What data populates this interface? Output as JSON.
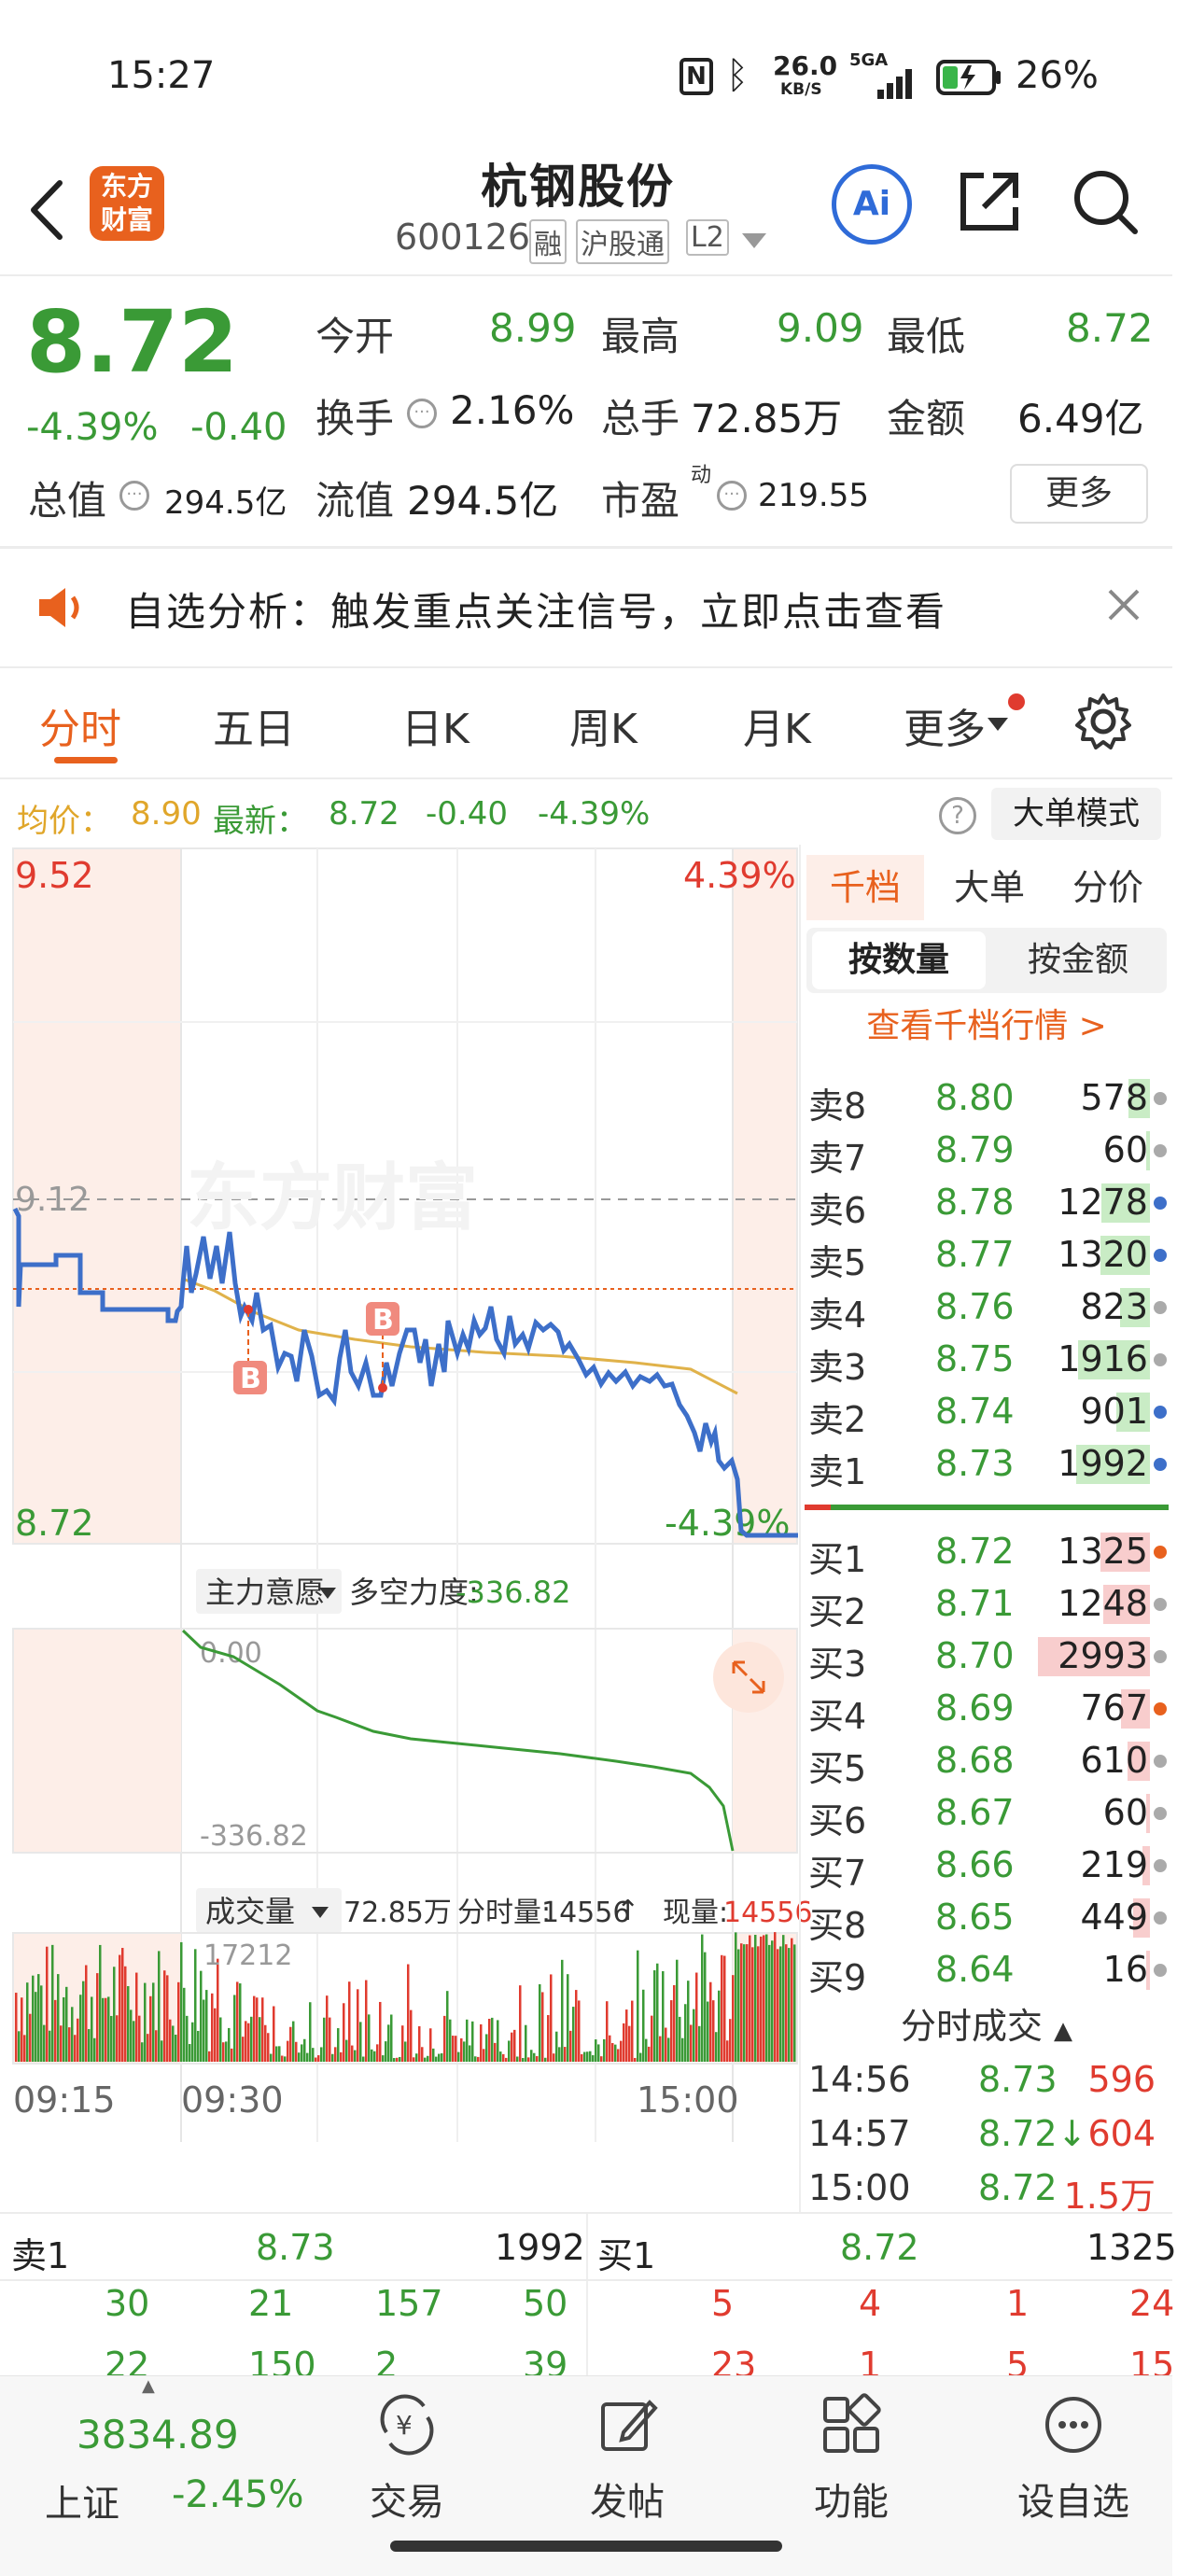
{
  "status": {
    "time": "15:27",
    "net_speed": "26.0",
    "net_unit": "KB/S",
    "signal": "5GA",
    "battery": "26%"
  },
  "header": {
    "brand": "东方\n财富",
    "brand_l1": "东方",
    "brand_l2": "财富",
    "name": "杭钢股份",
    "code": "600126",
    "tags": [
      "融",
      "沪股通",
      "L2"
    ],
    "ai_label": "Ai"
  },
  "quote": {
    "price": "8.72",
    "change_pct": "-4.39%",
    "change": "-0.40",
    "open_label": "今开",
    "open": "8.99",
    "high_label": "最高",
    "high": "9.09",
    "low_label": "最低",
    "low": "8.72",
    "turnover_label": "换手",
    "turnover": "2.16%",
    "volume_label": "总手",
    "volume": "72.85万",
    "amount_label": "金额",
    "amount": "6.49亿",
    "mktcap_label": "总值",
    "mktcap": "294.5亿",
    "float_label": "流值",
    "float_cap": "294.5亿",
    "pe_label": "市盈",
    "pe_sup": "动",
    "pe": "219.55",
    "more": "更多"
  },
  "notice": {
    "text": "自选分析：触发重点关注信号，立即点击查看"
  },
  "tabs": [
    "分时",
    "五日",
    "日K",
    "周K",
    "月K",
    "更多"
  ],
  "intraday": {
    "avg_label": "均价：",
    "avg": "8.90",
    "latest_label": "最新：",
    "latest": "8.72",
    "chg": "-0.40",
    "chg_pct": "-4.39%",
    "bigorder_mode": "大单模式",
    "y_top": "9.52",
    "y_top_pct": "4.39%",
    "y_mid": "9.12",
    "y_bot": "8.72",
    "y_bot_pct": "-4.39%",
    "watermark": "东方财富",
    "b_marker": "B",
    "indicator_label": "主力意愿",
    "indicator_name": "多空力度:",
    "indicator_value": "-336.82",
    "ind_top": "0.00",
    "ind_bot": "-336.82",
    "vol_label": "成交量",
    "vol_total": "72.85万",
    "vol_min_label": "分时量:",
    "vol_min": "14556",
    "vol_now_label": "现量:",
    "vol_now": "14556",
    "vol_max": "17212",
    "time_start": "09:15",
    "time_open": "09:30",
    "time_close": "15:00"
  },
  "orderbook": {
    "tabs": [
      "千档",
      "大单",
      "分价"
    ],
    "sub_tabs": [
      "按数量",
      "按金额"
    ],
    "link": "查看千档行情 >",
    "asks": [
      {
        "label": "卖8",
        "price": "8.80",
        "vol": "578",
        "bar": 0.19,
        "dot": "#aaaaaa"
      },
      {
        "label": "卖7",
        "price": "8.79",
        "vol": "60",
        "bar": 0.02,
        "dot": "#aaaaaa"
      },
      {
        "label": "卖6",
        "price": "8.78",
        "vol": "1278",
        "bar": 0.43,
        "dot": "#3d6fc9"
      },
      {
        "label": "卖5",
        "price": "8.77",
        "vol": "1320",
        "bar": 0.44,
        "dot": "#3d6fc9"
      },
      {
        "label": "卖4",
        "price": "8.76",
        "vol": "823",
        "bar": 0.27,
        "dot": "#aaaaaa"
      },
      {
        "label": "卖3",
        "price": "8.75",
        "vol": "1916",
        "bar": 0.64,
        "dot": "#aaaaaa"
      },
      {
        "label": "卖2",
        "price": "8.74",
        "vol": "901",
        "bar": 0.3,
        "dot": "#3d6fc9"
      },
      {
        "label": "卖1",
        "price": "8.73",
        "vol": "1992",
        "bar": 0.66,
        "dot": "#3d6fc9"
      }
    ],
    "bids": [
      {
        "label": "买1",
        "price": "8.72",
        "vol": "1325",
        "bar": 0.44,
        "dot": "#e8611e"
      },
      {
        "label": "买2",
        "price": "8.71",
        "vol": "1248",
        "bar": 0.42,
        "dot": "#aaaaaa"
      },
      {
        "label": "买3",
        "price": "8.70",
        "vol": "2993",
        "bar": 1.0,
        "dot": "#aaaaaa"
      },
      {
        "label": "买4",
        "price": "8.69",
        "vol": "767",
        "bar": 0.26,
        "dot": "#e8611e"
      },
      {
        "label": "买5",
        "price": "8.68",
        "vol": "610",
        "bar": 0.2,
        "dot": "#aaaaaa"
      },
      {
        "label": "买6",
        "price": "8.67",
        "vol": "60",
        "bar": 0.02,
        "dot": "#aaaaaa"
      },
      {
        "label": "买7",
        "price": "8.66",
        "vol": "219",
        "bar": 0.07,
        "dot": "#aaaaaa"
      },
      {
        "label": "买8",
        "price": "8.65",
        "vol": "449",
        "bar": 0.15,
        "dot": "#aaaaaa"
      },
      {
        "label": "买9",
        "price": "8.64",
        "vol": "16",
        "bar": 0.01,
        "dot": "#aaaaaa"
      }
    ],
    "trades_title": "分时成交",
    "trades": [
      {
        "time": "14:56",
        "price": "8.73",
        "vol": "596",
        "arrow": ""
      },
      {
        "time": "14:57",
        "price": "8.72↓",
        "vol": "604",
        "arrow": ""
      },
      {
        "time": "15:00",
        "price": "8.72",
        "vol": "1.5万",
        "arrow": ""
      }
    ]
  },
  "summary": {
    "sell_label": "卖1",
    "sell_price": "8.73",
    "sell_vol": "1992",
    "buy_label": "买1",
    "buy_price": "8.72",
    "buy_vol": "1325",
    "sell_queue": [
      "30",
      "21",
      "157",
      "50"
    ],
    "buy_queue": [
      "5",
      "4",
      "1",
      "24"
    ],
    "sell_queue2": [
      "22",
      "150",
      "2",
      "39"
    ],
    "buy_queue2": [
      "23",
      "1",
      "5",
      "15"
    ]
  },
  "bottom_nav": {
    "index_value": "3834.89",
    "index_name": "上证",
    "index_chg": "-2.45%",
    "items": [
      "交易",
      "发帖",
      "功能",
      "设自选"
    ]
  },
  "colors": {
    "up": "#e03b2f",
    "down": "#3a9a36",
    "accent": "#e8611e",
    "price_line": "#3d6fc9",
    "avg_line": "#e0b24a"
  }
}
